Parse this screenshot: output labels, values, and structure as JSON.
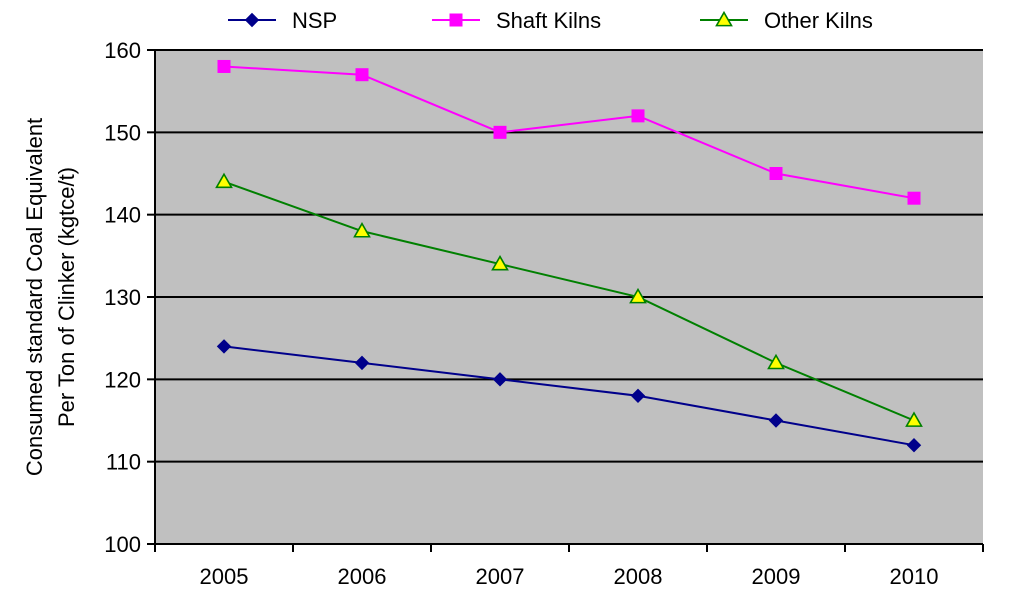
{
  "chart_data": {
    "type": "line",
    "title": "",
    "xlabel": "",
    "ylabel_lines": [
      "Consumed standard Coal Equivalent",
      "Per Ton of Clinker (kgtce/t)"
    ],
    "categories": [
      "2005",
      "2006",
      "2007",
      "2008",
      "2009",
      "2010"
    ],
    "ylim": [
      100,
      160
    ],
    "yticks": [
      100,
      110,
      120,
      130,
      140,
      150,
      160
    ],
    "grid": true,
    "legend_position": "top",
    "plot_background": "#c0c0c0",
    "series": [
      {
        "name": "NSP",
        "values": [
          124,
          122,
          120,
          118,
          115,
          112
        ],
        "color": "#00008b",
        "marker": "diamond"
      },
      {
        "name": "Shaft Kilns",
        "values": [
          158,
          157,
          150,
          152,
          145,
          142
        ],
        "color": "#ff00ff",
        "marker": "square"
      },
      {
        "name": "Other Kilns",
        "values": [
          144,
          138,
          134,
          130,
          122,
          115
        ],
        "color": "#008000",
        "marker": "triangle",
        "marker_fill": "#ffff00"
      }
    ]
  }
}
